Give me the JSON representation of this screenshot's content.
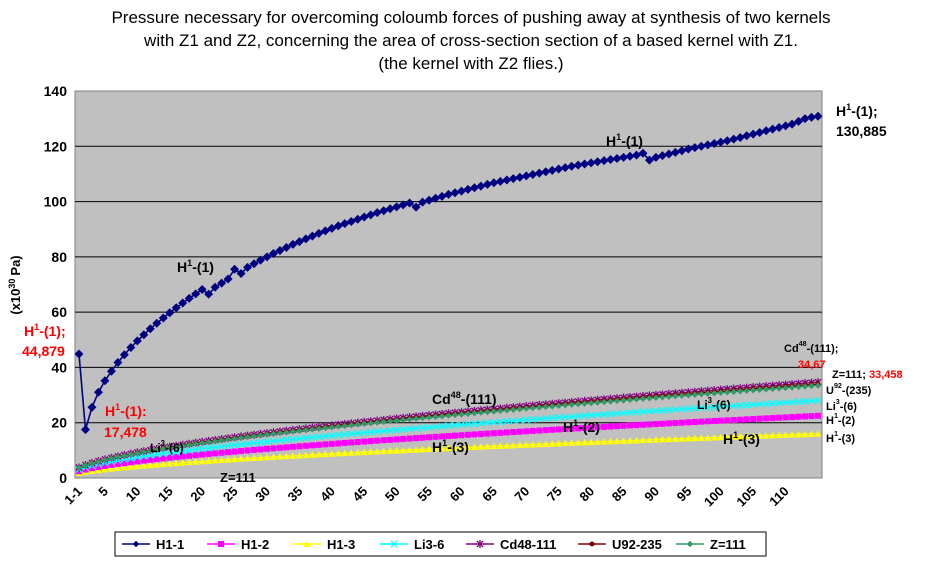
{
  "title_lines": [
    "Pressure necessary for overcoming coloumb forces of pushing away at synthesis of two kernels",
    "with Z1 and Z2, concerning the area of cross-section section of a based kernel with Z1.",
    "(the kernel with Z2 flies.)"
  ],
  "chart_data": {
    "type": "line",
    "ylabel": "(x10",
    "ylabel_sup": "30",
    "ylabel_unit": "Pa)",
    "ylim": [
      0,
      140
    ],
    "yticks": [
      0,
      20,
      40,
      60,
      80,
      100,
      120,
      140
    ],
    "x_count": 115,
    "xtick_labels": [
      "1-1",
      "5",
      "10",
      "15",
      "20",
      "25",
      "30",
      "35",
      "40",
      "45",
      "50",
      "55",
      "60",
      "65",
      "70",
      "75",
      "80",
      "85",
      "90",
      "95",
      "100",
      "105",
      "110"
    ],
    "xtick_positions": [
      1,
      5,
      10,
      15,
      20,
      25,
      30,
      35,
      40,
      45,
      50,
      55,
      60,
      65,
      70,
      75,
      80,
      85,
      90,
      95,
      100,
      105,
      110
    ],
    "grid": true,
    "background": "#c0c0c0",
    "legend_position": "bottom",
    "series": [
      {
        "name": "H1-1",
        "color": "#000080",
        "marker": "diamond",
        "values": [
          44.879,
          17.478,
          25.6,
          31.0,
          35.2,
          38.6,
          41.8,
          44.6,
          47.2,
          49.6,
          51.8,
          54.0,
          56.0,
          57.9,
          59.8,
          61.6,
          63.3,
          65.0,
          66.6,
          68.2,
          66.5,
          69.0,
          70.5,
          72.0,
          75.5,
          74.0,
          76.2,
          77.5,
          78.8,
          80.0,
          81.2,
          82.3,
          83.4,
          84.5,
          85.5,
          86.5,
          87.5,
          88.5,
          89.4,
          90.3,
          91.2,
          92.0,
          92.8,
          93.6,
          94.4,
          95.2,
          96.0,
          96.7,
          97.4,
          98.1,
          98.8,
          99.5,
          98.0,
          99.8,
          100.5,
          101.2,
          101.9,
          102.6,
          103.2,
          103.8,
          104.4,
          105.0,
          105.6,
          106.2,
          106.8,
          107.3,
          107.8,
          108.3,
          108.8,
          109.3,
          109.8,
          110.3,
          110.8,
          111.3,
          111.8,
          112.3,
          112.8,
          113.2,
          113.6,
          114.0,
          114.4,
          114.8,
          115.2,
          115.6,
          116.0,
          116.4,
          116.8,
          117.5,
          115.0,
          116.0,
          116.6,
          117.2,
          117.8,
          118.4,
          119.0,
          119.5,
          120.0,
          120.5,
          121.0,
          121.5,
          122.0,
          122.6,
          123.2,
          123.8,
          124.4,
          125.0,
          125.6,
          126.2,
          126.8,
          127.4,
          128.0,
          129.0,
          130.0,
          130.5,
          130.885
        ]
      },
      {
        "name": "H1-2",
        "color": "#ff00ff",
        "marker": "square",
        "k": 22.5
      },
      {
        "name": "H1-3",
        "color": "#ffff00",
        "marker": "triangle",
        "k": 16.0
      },
      {
        "name": "Li3-6",
        "color": "#00ffff",
        "marker": "x",
        "k": 28.0
      },
      {
        "name": "Cd48-111",
        "color": "#800080",
        "marker": "star",
        "k": 34.67
      },
      {
        "name": "U92-235",
        "color": "#800000",
        "marker": "circle",
        "k": 34.0
      },
      {
        "name": "Z=111",
        "color": "#339966",
        "marker": "diamond",
        "k": 33.458
      }
    ]
  },
  "annotations": {
    "h1_end_label": "H",
    "h1_end_sup": "1",
    "h1_end_rest": "-(1);",
    "h1_end_value": "130,885",
    "h1_mid_a": "H",
    "h1_mid_a_sup": "1",
    "h1_mid_a_rest": "-(1)",
    "h1_mid_b": "H",
    "h1_mid_b_sup": "1",
    "h1_mid_b_rest": "-(1)",
    "h1_start": "H",
    "h1_start_sup": "1",
    "h1_start_rest": "-(1);",
    "h1_start_value": "44,879",
    "h1_second": "H",
    "h1_second_sup": "1",
    "h1_second_rest": "-(1):",
    "h1_second_value": "17,478",
    "li_label": "Li",
    "li_sup": "3",
    "li_rest": "-(6)",
    "z111_label": "Z=111",
    "cd_label": "Cd",
    "cd_sup": "48",
    "cd_rest": "-(111)",
    "h2_label": "H",
    "h2_sup": "1",
    "h2_rest": "-(2)",
    "h3_label": "H",
    "h3_sup": "1",
    "h3_rest": "-(3)",
    "h3b_label": "H",
    "h3b_sup": "1",
    "h3b_rest": "-(3)",
    "li_b_label": "Li",
    "li_b_sup": "3",
    "li_b_rest": "-(6)",
    "right_cd": "Cd",
    "right_cd_sup": "48",
    "right_cd_rest": "-(111);",
    "right_cd_value": "34,67",
    "right_z": "Z=111;",
    "right_z_value": "33,458",
    "right_u": "U",
    "right_u_sup": "92",
    "right_u_rest": "-(235)",
    "right_li": "Li",
    "right_li_sup": "3",
    "right_li_rest": "-(6)",
    "right_h2": "H",
    "right_h2_sup": "1",
    "right_h2_rest": "-(2)",
    "right_h3": "H",
    "right_h3_sup": "1",
    "right_h3_rest": "-(3)"
  }
}
